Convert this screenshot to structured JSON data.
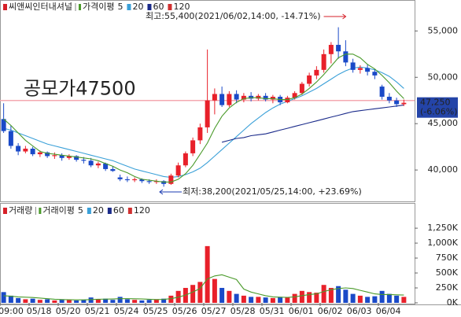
{
  "chart_data": [
    {
      "type": "candlestick",
      "title": "씨앤씨인터내셔널",
      "title_color": "#d62028",
      "up_color": "#e8202a",
      "down_color": "#1a4ac8",
      "ylim": [
        36700,
        58000
      ],
      "yticks": [
        {
          "value": 40000,
          "label": "40,000"
        },
        {
          "value": 45000,
          "label": "45,000"
        },
        {
          "value": 50000,
          "label": "50,000"
        },
        {
          "value": 55000,
          "label": "55,000"
        }
      ],
      "ohlc": [
        [
          45500,
          47200,
          44000,
          44200
        ],
        [
          44200,
          44800,
          42300,
          42600
        ],
        [
          42600,
          42900,
          41600,
          42000
        ],
        [
          42000,
          42600,
          41800,
          42300
        ],
        [
          42300,
          42500,
          41500,
          41700
        ],
        [
          41700,
          42100,
          41400,
          41900
        ],
        [
          41900,
          42000,
          41300,
          41500
        ],
        [
          41500,
          41900,
          41200,
          41600
        ],
        [
          41600,
          41800,
          41000,
          41300
        ],
        [
          41300,
          41700,
          41100,
          41500
        ],
        [
          41500,
          41600,
          40900,
          41100
        ],
        [
          41100,
          41400,
          40700,
          41000
        ],
        [
          41000,
          41300,
          40300,
          40500
        ],
        [
          40500,
          40900,
          40200,
          40700
        ],
        [
          40700,
          40800,
          39900,
          40100
        ],
        [
          40100,
          40400,
          39800,
          39900
        ],
        [
          39200,
          39500,
          38800,
          39000
        ],
        [
          39000,
          39300,
          38700,
          38900
        ],
        [
          38900,
          39200,
          38700,
          39000
        ],
        [
          39000,
          39100,
          38600,
          38800
        ],
        [
          38800,
          39000,
          38500,
          38700
        ],
        [
          38700,
          39000,
          38500,
          38800
        ],
        [
          38800,
          38900,
          38200,
          38500
        ],
        [
          38500,
          39600,
          38400,
          39400
        ],
        [
          39400,
          40800,
          39200,
          40500
        ],
        [
          40500,
          42000,
          40300,
          41800
        ],
        [
          41800,
          43500,
          41500,
          43200
        ],
        [
          43200,
          45000,
          42800,
          44600
        ],
        [
          44600,
          53000,
          44000,
          47500
        ],
        [
          47500,
          48800,
          46000,
          48200
        ],
        [
          48200,
          49000,
          46800,
          47000
        ],
        [
          47000,
          48500,
          46800,
          48200
        ],
        [
          48200,
          48600,
          47200,
          47600
        ],
        [
          47600,
          48300,
          47300,
          48000
        ],
        [
          48000,
          48400,
          47400,
          47700
        ],
        [
          47700,
          48200,
          47500,
          48000
        ],
        [
          48000,
          48300,
          47400,
          47600
        ],
        [
          47600,
          48100,
          47200,
          47900
        ],
        [
          47900,
          48100,
          47000,
          47300
        ],
        [
          47300,
          48000,
          47200,
          47800
        ],
        [
          47800,
          48500,
          47600,
          48300
        ],
        [
          48300,
          49500,
          48100,
          49300
        ],
        [
          49300,
          50500,
          49000,
          50200
        ],
        [
          50200,
          51200,
          49800,
          50800
        ],
        [
          50800,
          53000,
          50500,
          52500
        ],
        [
          52500,
          53800,
          51500,
          53500
        ],
        [
          53500,
          55400,
          52000,
          52800
        ],
        [
          52800,
          54000,
          51200,
          51600
        ],
        [
          51600,
          52000,
          50500,
          50800
        ],
        [
          50800,
          51300,
          50400,
          51000
        ],
        [
          51000,
          51400,
          50200,
          50600
        ],
        [
          50600,
          50900,
          49800,
          50200
        ],
        [
          49000,
          49200,
          47600,
          47900
        ],
        [
          47900,
          48300,
          47200,
          47500
        ],
        [
          47500,
          47800,
          46800,
          47100
        ],
        [
          47100,
          47600,
          46900,
          47250
        ]
      ],
      "ma_label": "가격이평",
      "series": [
        {
          "name": "5",
          "color": "#4a9a2a",
          "values": [
            45500,
            44800,
            44000,
            43200,
            42600,
            42000,
            41800,
            41700,
            41600,
            41500,
            41400,
            41300,
            41200,
            41000,
            40700,
            40400,
            40000,
            39700,
            39300,
            39000,
            38900,
            38800,
            38700,
            38700,
            39000,
            39600,
            40500,
            41700,
            42900,
            44500,
            45800,
            46700,
            47300,
            47700,
            47800,
            47800,
            47700,
            47700,
            47600,
            47600,
            47800,
            48200,
            48800,
            49500,
            50300,
            51200,
            52100,
            52500,
            52500,
            52100,
            51400,
            50900,
            50200,
            49400,
            48500,
            47700
          ]
        },
        {
          "name": "20",
          "color": "#3aa0d8",
          "values": [
            44500,
            44300,
            44000,
            43700,
            43400,
            43100,
            42800,
            42600,
            42400,
            42200,
            42000,
            41800,
            41600,
            41400,
            41200,
            41000,
            40700,
            40400,
            40100,
            39900,
            39700,
            39500,
            39300,
            39200,
            39300,
            39500,
            39800,
            40200,
            40800,
            41500,
            42200,
            42900,
            43600,
            44300,
            45000,
            45600,
            46200,
            46700,
            47100,
            47400,
            47700,
            48000,
            48400,
            48800,
            49300,
            49800,
            50300,
            50700,
            51000,
            51100,
            51000,
            50800,
            50500,
            50100,
            49500,
            48800
          ]
        },
        {
          "name": "60",
          "color": "#1a2a8a",
          "values": [
            null,
            null,
            null,
            null,
            null,
            null,
            null,
            null,
            null,
            null,
            null,
            null,
            null,
            null,
            null,
            null,
            null,
            null,
            null,
            null,
            null,
            null,
            null,
            null,
            null,
            null,
            null,
            null,
            null,
            null,
            43000,
            43200,
            43400,
            43500,
            43700,
            43800,
            43900,
            44100,
            44300,
            44500,
            44700,
            44900,
            45100,
            45300,
            45500,
            45700,
            45900,
            46100,
            46300,
            46400,
            46500,
            46600,
            46700,
            46800,
            46900,
            47000
          ]
        },
        {
          "name": "120",
          "color": "#d03030"
        }
      ],
      "reference_line": {
        "value": 47500,
        "label": "공모가47500",
        "color": "#f4a8b0"
      },
      "last_price": {
        "value": 47250,
        "label": "47,250",
        "change": "(-6.06%)"
      },
      "annotations": [
        {
          "text": "최고:55,400(2021/06/02,14:00, -14.71%)",
          "color": "#d62028"
        },
        {
          "text": "최저:38,200(2021/05/25,14:00, +23.69%)",
          "color": "#1a3ab0"
        }
      ]
    },
    {
      "type": "volume",
      "title": "거래량",
      "title_color": "#d62028",
      "ylim": [
        0,
        1620000
      ],
      "yticks": [
        {
          "value": 0,
          "label": "0K"
        },
        {
          "value": 250000,
          "label": "250K"
        },
        {
          "value": 500000,
          "label": "500K"
        },
        {
          "value": 750000,
          "label": "750K"
        },
        {
          "value": 1000000,
          "label": "1,000K"
        },
        {
          "value": 1250000,
          "label": "1,250K"
        }
      ],
      "categories": [
        "09:00",
        null,
        null,
        null,
        "05/18",
        null,
        null,
        null,
        "05/20",
        null,
        null,
        null,
        "05/21",
        null,
        null,
        null,
        "05/24",
        null,
        null,
        null,
        "05/25",
        null,
        null,
        null,
        "05/26",
        null,
        null,
        null,
        "05/27",
        null,
        null,
        null,
        "05/28",
        null,
        null,
        null,
        "05/31",
        null,
        null,
        null,
        "06/01",
        null,
        null,
        null,
        "06/02",
        null,
        null,
        null,
        "06/03",
        null,
        null,
        null,
        "06/04",
        null,
        null,
        null
      ],
      "values": [
        180000,
        120000,
        80000,
        60000,
        70000,
        50000,
        60000,
        40000,
        60000,
        50000,
        40000,
        50000,
        90000,
        60000,
        70000,
        50000,
        100000,
        60000,
        50000,
        40000,
        50000,
        60000,
        70000,
        120000,
        200000,
        250000,
        300000,
        350000,
        950000,
        400000,
        250000,
        200000,
        150000,
        120000,
        100000,
        100000,
        90000,
        80000,
        100000,
        90000,
        150000,
        200000,
        180000,
        170000,
        300000,
        250000,
        280000,
        220000,
        150000,
        120000,
        100000,
        110000,
        200000,
        150000,
        120000,
        100000
      ],
      "ma_label": "거래이평",
      "series": [
        {
          "name": "5",
          "color": "#4a9a2a",
          "values": [
            120000,
            110000,
            100000,
            95000,
            90000,
            80000,
            70000,
            60000,
            55000,
            52000,
            50000,
            50000,
            55000,
            60000,
            62000,
            65000,
            70000,
            70000,
            68000,
            65000,
            60000,
            55000,
            58000,
            70000,
            95000,
            130000,
            180000,
            240000,
            400000,
            450000,
            470000,
            430000,
            390000,
            230000,
            180000,
            150000,
            120000,
            100000,
            95000,
            92000,
            100000,
            120000,
            140000,
            150000,
            190000,
            220000,
            240000,
            250000,
            240000,
            210000,
            180000,
            150000,
            140000,
            140000,
            135000,
            130000
          ]
        },
        {
          "name": "20",
          "color": "#3aa0d8"
        },
        {
          "name": "60",
          "color": "#1a2a8a"
        },
        {
          "name": "120",
          "color": "#d03030"
        }
      ]
    }
  ]
}
